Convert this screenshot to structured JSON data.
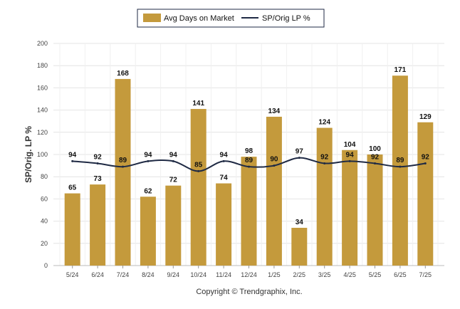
{
  "chart_data": {
    "type": "bar",
    "categories": [
      "5/24",
      "6/24",
      "7/24",
      "8/24",
      "9/24",
      "10/24",
      "11/24",
      "12/24",
      "1/25",
      "2/25",
      "3/25",
      "4/25",
      "5/25",
      "6/25",
      "7/25"
    ],
    "series": [
      {
        "name": "Avg Days on Market",
        "type": "bar",
        "color": "#c49a3c",
        "values": [
          65,
          73,
          168,
          62,
          72,
          141,
          74,
          98,
          134,
          34,
          124,
          104,
          100,
          171,
          129
        ]
      },
      {
        "name": "SP/Orig LP %",
        "type": "line",
        "color": "#1f2a44",
        "values": [
          94,
          92,
          89,
          94,
          94,
          85,
          94,
          89,
          90,
          97,
          92,
          94,
          92,
          89,
          92
        ]
      }
    ],
    "xlabel": "",
    "ylabel": "SP/Orig. LP %",
    "ylim": [
      0,
      200
    ],
    "yticks": [
      0,
      20,
      40,
      60,
      80,
      100,
      120,
      140,
      160,
      180,
      200
    ],
    "grid": true,
    "legend_position": "top-center",
    "copyright": "Copyright © Trendgraphix, Inc."
  }
}
